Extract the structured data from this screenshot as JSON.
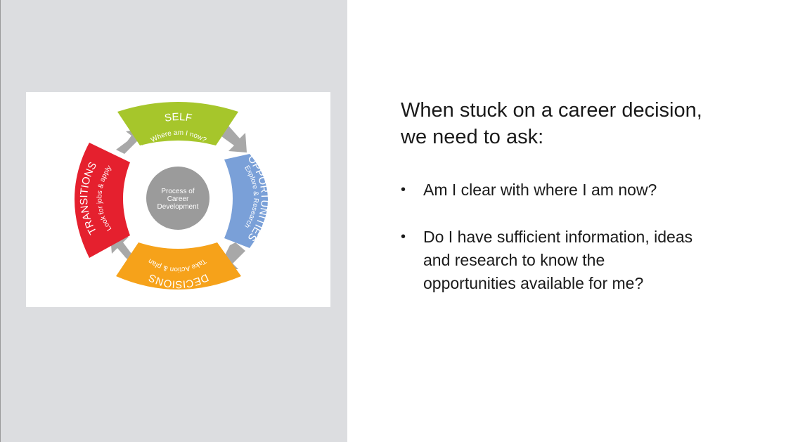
{
  "diagram": {
    "center_lines": [
      "Process of",
      "Career",
      "Development"
    ],
    "segments": [
      {
        "title": "SELF",
        "subtitle": "Where am I now?",
        "color": "#a6c62b"
      },
      {
        "title": "OPPORTUNITIES",
        "subtitle": "Explore & Research",
        "color": "#7aa0d8"
      },
      {
        "title": "DECISIONS",
        "subtitle": "Take Action & plan",
        "color": "#f6a21a"
      },
      {
        "title": "TRANSITIONS",
        "subtitle": "Look for jobs & apply",
        "color": "#e5202e"
      }
    ],
    "center_color": "#9b9b9b",
    "arrow_color": "#a8a8a8"
  },
  "slide": {
    "heading_lines": [
      "When stuck on a career decision,",
      "we need to ask:"
    ],
    "bullets": [
      {
        "lines": [
          "Am I clear with where I am now?"
        ]
      },
      {
        "lines": [
          "Do I have sufficient information, ideas",
          "and research to know the",
          "opportunities available for me?"
        ]
      }
    ]
  }
}
